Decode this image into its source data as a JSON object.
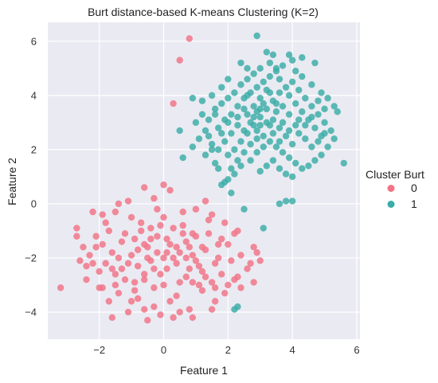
{
  "chart_data": {
    "type": "scatter",
    "title": "Burt distance-based K-means Clustering (K=2)",
    "xlabel": "Feature 1",
    "ylabel": "Feature 2",
    "xlim": [
      -3.6,
      6.1
    ],
    "ylim": [
      -5.0,
      6.7
    ],
    "xticks": [
      -2,
      0,
      2,
      4,
      6
    ],
    "yticks": [
      -4,
      -2,
      0,
      2,
      4,
      6
    ],
    "grid": true,
    "legend": {
      "title": "Cluster Burt",
      "placement": "right",
      "entries": [
        "0",
        "1"
      ]
    },
    "colors": {
      "0": "#f27385",
      "1": "#3aada6",
      "background": "#eaeaf2",
      "grid": "#ffffff"
    },
    "series": [
      {
        "name": "0",
        "points": [
          [
            0.8,
            6.1
          ],
          [
            0.5,
            5.3
          ],
          [
            0.3,
            3.7
          ],
          [
            -3.2,
            -3.1
          ],
          [
            -2.7,
            -0.9
          ],
          [
            -2.7,
            -1.2
          ],
          [
            -2.6,
            -2.1
          ],
          [
            -2.4,
            -2.8
          ],
          [
            -2.1,
            -1.6
          ],
          [
            -2.0,
            -2.5
          ],
          [
            -1.9,
            -0.4
          ],
          [
            -1.9,
            -3.1
          ],
          [
            -1.7,
            -3.6
          ],
          [
            -1.6,
            -4.2
          ],
          [
            -1.5,
            -0.3
          ],
          [
            -1.4,
            -3.3
          ],
          [
            -1.3,
            -2.4
          ],
          [
            -1.2,
            -1.1
          ],
          [
            -1.1,
            -4.0
          ],
          [
            -1.0,
            -0.5
          ],
          [
            -0.9,
            -2.9
          ],
          [
            -0.8,
            -3.5
          ],
          [
            -0.7,
            -0.7
          ],
          [
            -0.6,
            -1.5
          ],
          [
            -0.5,
            -4.3
          ],
          [
            -0.4,
            -2.1
          ],
          [
            -0.3,
            -3.8
          ],
          [
            -0.2,
            -0.2
          ],
          [
            -0.1,
            -2.6
          ],
          [
            0.0,
            -3.0
          ],
          [
            0.1,
            -1.3
          ],
          [
            0.2,
            0.5
          ],
          [
            0.3,
            -2.0
          ],
          [
            0.4,
            -3.4
          ],
          [
            0.5,
            -4.0
          ],
          [
            0.6,
            -0.8
          ],
          [
            0.7,
            -2.7
          ],
          [
            0.8,
            -3.9
          ],
          [
            0.9,
            -1.1
          ],
          [
            1.0,
            -0.2
          ],
          [
            1.1,
            -2.3
          ],
          [
            1.2,
            -3.2
          ],
          [
            1.3,
            -1.7
          ],
          [
            1.4,
            -0.6
          ],
          [
            1.5,
            -2.9
          ],
          [
            1.6,
            -3.6
          ],
          [
            1.7,
            -1.5
          ],
          [
            1.8,
            -2.6
          ],
          [
            1.9,
            -0.7
          ],
          [
            2.0,
            -3.0
          ],
          [
            2.1,
            -2.1
          ],
          [
            2.2,
            -1.1
          ],
          [
            2.3,
            -2.7
          ],
          [
            2.4,
            -1.9
          ],
          [
            2.6,
            -2.4
          ],
          [
            2.8,
            -1.6
          ],
          [
            2.9,
            -1.8
          ],
          [
            3.0,
            -2.1
          ],
          [
            2.2,
            -2.8
          ],
          [
            2.3,
            -1.0
          ],
          [
            1.3,
            0.1
          ],
          [
            1.5,
            -0.4
          ],
          [
            -0.3,
            0.2
          ],
          [
            -0.6,
            0.6
          ],
          [
            0.0,
            0.7
          ],
          [
            -1.1,
            0.1
          ],
          [
            -1.4,
            0.0
          ],
          [
            -2.2,
            -0.3
          ],
          [
            -2.3,
            -1.9
          ],
          [
            -1.8,
            -2.2
          ],
          [
            -2.1,
            -1.2
          ],
          [
            -1.6,
            -1.8
          ],
          [
            -1.3,
            -1.4
          ],
          [
            -1.0,
            -1.9
          ],
          [
            -0.8,
            -2.3
          ],
          [
            -0.5,
            -1.6
          ],
          [
            -0.2,
            -1.2
          ],
          [
            0.1,
            -1.8
          ],
          [
            0.4,
            -2.2
          ],
          [
            0.7,
            -1.4
          ],
          [
            0.9,
            -1.9
          ],
          [
            1.2,
            -2.5
          ],
          [
            1.4,
            -1.1
          ],
          [
            1.6,
            -2.2
          ],
          [
            1.8,
            -1.3
          ],
          [
            -1.2,
            -2.8
          ],
          [
            -0.9,
            -3.2
          ],
          [
            -0.6,
            -2.6
          ],
          [
            -0.3,
            -3.1
          ],
          [
            0.2,
            -3.6
          ],
          [
            0.5,
            -2.9
          ],
          [
            0.8,
            -2.4
          ],
          [
            1.1,
            -3.0
          ],
          [
            1.3,
            -2.7
          ],
          [
            1.6,
            -3.1
          ],
          [
            -1.5,
            -2.6
          ],
          [
            -0.7,
            -1.0
          ],
          [
            -0.4,
            -0.9
          ],
          [
            0.0,
            -0.5
          ],
          [
            0.3,
            -0.9
          ],
          [
            0.6,
            -0.3
          ],
          [
            1.0,
            -1.2
          ],
          [
            -1.9,
            -1.5
          ],
          [
            -1.7,
            -1.0
          ],
          [
            -0.1,
            -4.1
          ],
          [
            0.3,
            -4.2
          ],
          [
            0.9,
            -4.2
          ],
          [
            -0.6,
            -3.9
          ],
          [
            -1.0,
            -3.6
          ],
          [
            1.5,
            -3.9
          ],
          [
            1.9,
            -3.3
          ],
          [
            2.4,
            -3.1
          ],
          [
            2.7,
            -2.2
          ],
          [
            2.8,
            -2.9
          ],
          [
            -2.5,
            -1.6
          ],
          [
            -2.4,
            -2.3
          ],
          [
            -2.0,
            -3.1
          ],
          [
            -1.5,
            -3.0
          ],
          [
            0.6,
            -1.1
          ],
          [
            -0.5,
            -2.0
          ],
          [
            0.1,
            -2.4
          ],
          [
            0.4,
            -1.6
          ],
          [
            -0.2,
            -1.8
          ],
          [
            -0.9,
            -1.3
          ],
          [
            1.2,
            -1.6
          ],
          [
            0.7,
            -2.0
          ],
          [
            -1.1,
            -2.2
          ],
          [
            -0.3,
            -2.4
          ],
          [
            0.9,
            -2.9
          ],
          [
            1.7,
            -2.0
          ],
          [
            2.0,
            -1.5
          ],
          [
            -1.4,
            -2.0
          ],
          [
            -0.8,
            -1.7
          ],
          [
            0.2,
            -1.5
          ],
          [
            0.5,
            -1.8
          ],
          [
            -0.6,
            -2.8
          ],
          [
            0.0,
            -2.0
          ],
          [
            -0.4,
            -1.3
          ],
          [
            0.8,
            -1.6
          ],
          [
            1.0,
            -2.1
          ],
          [
            -1.6,
            -2.4
          ],
          [
            -2.2,
            -2.2
          ],
          [
            -1.8,
            -0.7
          ],
          [
            -0.1,
            -0.8
          ]
        ]
      },
      {
        "name": "1",
        "points": [
          [
            2.9,
            6.2
          ],
          [
            5.6,
            1.5
          ],
          [
            3.6,
            0.0
          ],
          [
            3.8,
            0.1
          ],
          [
            4.0,
            0.1
          ],
          [
            3.1,
            -0.9
          ],
          [
            2.5,
            -0.2
          ],
          [
            2.1,
            0.4
          ],
          [
            2.2,
            -3.9
          ],
          [
            2.3,
            -3.8
          ],
          [
            1.8,
            0.7
          ],
          [
            1.9,
            0.8
          ],
          [
            2.0,
            0.9
          ],
          [
            1.7,
            1.3
          ],
          [
            1.6,
            1.5
          ],
          [
            1.3,
            1.8
          ],
          [
            1.5,
            2.0
          ],
          [
            1.4,
            2.5
          ],
          [
            1.7,
            2.8
          ],
          [
            1.9,
            3.1
          ],
          [
            2.1,
            3.3
          ],
          [
            2.3,
            3.6
          ],
          [
            2.5,
            3.9
          ],
          [
            2.7,
            4.1
          ],
          [
            2.9,
            4.3
          ],
          [
            3.1,
            4.5
          ],
          [
            3.3,
            4.7
          ],
          [
            3.5,
            4.9
          ],
          [
            3.7,
            5.1
          ],
          [
            4.0,
            5.3
          ],
          [
            4.3,
            5.4
          ],
          [
            4.7,
            5.2
          ],
          [
            3.2,
            5.6
          ],
          [
            3.4,
            5.5
          ],
          [
            2.4,
            5.2
          ],
          [
            2.6,
            5.0
          ],
          [
            2.0,
            4.6
          ],
          [
            1.8,
            4.3
          ],
          [
            1.5,
            4.0
          ],
          [
            1.2,
            3.8
          ],
          [
            0.9,
            3.9
          ],
          [
            0.5,
            2.7
          ],
          [
            0.6,
            1.7
          ],
          [
            0.9,
            2.1
          ],
          [
            1.1,
            2.4
          ],
          [
            1.0,
            3.0
          ],
          [
            1.2,
            3.3
          ],
          [
            1.6,
            3.5
          ],
          [
            2.2,
            2.0
          ],
          [
            2.4,
            2.3
          ],
          [
            2.6,
            2.6
          ],
          [
            2.8,
            2.9
          ],
          [
            3.0,
            3.2
          ],
          [
            3.2,
            3.5
          ],
          [
            3.4,
            3.8
          ],
          [
            3.6,
            4.1
          ],
          [
            3.8,
            4.3
          ],
          [
            4.0,
            4.5
          ],
          [
            4.2,
            4.2
          ],
          [
            4.4,
            3.9
          ],
          [
            4.6,
            3.6
          ],
          [
            4.8,
            3.3
          ],
          [
            5.0,
            3.0
          ],
          [
            5.2,
            2.7
          ],
          [
            5.3,
            2.4
          ],
          [
            5.1,
            2.1
          ],
          [
            4.9,
            1.8
          ],
          [
            4.7,
            1.6
          ],
          [
            4.5,
            1.4
          ],
          [
            4.3,
            1.3
          ],
          [
            4.1,
            1.5
          ],
          [
            3.9,
            1.7
          ],
          [
            3.7,
            1.9
          ],
          [
            3.5,
            2.1
          ],
          [
            3.3,
            2.3
          ],
          [
            3.1,
            2.5
          ],
          [
            2.9,
            2.7
          ],
          [
            2.7,
            2.2
          ],
          [
            2.5,
            1.9
          ],
          [
            2.3,
            1.6
          ],
          [
            2.1,
            1.3
          ],
          [
            2.0,
            1.8
          ],
          [
            3.0,
            1.2
          ],
          [
            3.2,
            1.4
          ],
          [
            3.4,
            1.6
          ],
          [
            3.6,
            1.3
          ],
          [
            3.8,
            1.1
          ],
          [
            4.0,
            1.0
          ],
          [
            2.6,
            3.3
          ],
          [
            2.8,
            3.6
          ],
          [
            3.0,
            3.9
          ],
          [
            3.2,
            4.2
          ],
          [
            3.4,
            3.1
          ],
          [
            3.6,
            2.8
          ],
          [
            3.8,
            2.5
          ],
          [
            4.0,
            2.2
          ],
          [
            4.2,
            2.6
          ],
          [
            4.4,
            2.9
          ],
          [
            4.6,
            3.2
          ],
          [
            4.8,
            2.3
          ],
          [
            5.0,
            2.6
          ],
          [
            5.4,
            3.4
          ],
          [
            5.3,
            3.6
          ],
          [
            5.1,
            3.9
          ],
          [
            4.9,
            4.1
          ],
          [
            4.6,
            4.4
          ],
          [
            4.3,
            4.7
          ],
          [
            4.1,
            4.9
          ],
          [
            3.9,
            5.5
          ],
          [
            3.5,
            5.0
          ],
          [
            3.3,
            4.1
          ],
          [
            3.1,
            3.7
          ],
          [
            2.9,
            3.4
          ],
          [
            2.7,
            3.0
          ],
          [
            2.5,
            2.7
          ],
          [
            2.3,
            2.9
          ],
          [
            2.1,
            2.6
          ],
          [
            1.9,
            2.3
          ],
          [
            1.7,
            2.0
          ],
          [
            1.5,
            2.2
          ],
          [
            1.3,
            2.7
          ],
          [
            1.4,
            3.1
          ],
          [
            1.6,
            3.3
          ],
          [
            1.8,
            3.7
          ],
          [
            2.0,
            3.9
          ],
          [
            2.2,
            4.1
          ],
          [
            2.4,
            4.4
          ],
          [
            2.6,
            4.6
          ],
          [
            2.8,
            4.8
          ],
          [
            3.0,
            5.0
          ],
          [
            3.3,
            5.2
          ],
          [
            3.6,
            4.6
          ],
          [
            3.9,
            4.0
          ],
          [
            4.1,
            3.7
          ],
          [
            4.3,
            3.4
          ],
          [
            4.5,
            3.1
          ],
          [
            4.7,
            2.8
          ],
          [
            4.9,
            2.5
          ],
          [
            4.1,
            2.9
          ],
          [
            3.9,
            3.3
          ],
          [
            3.7,
            3.6
          ],
          [
            3.5,
            3.4
          ],
          [
            3.3,
            2.9
          ],
          [
            3.1,
            2.1
          ],
          [
            2.9,
            1.9
          ],
          [
            2.7,
            1.6
          ],
          [
            2.4,
            1.4
          ],
          [
            2.2,
            1.1
          ],
          [
            3.5,
            3.7
          ],
          [
            3.0,
            2.9
          ],
          [
            2.8,
            3.2
          ],
          [
            3.7,
            3.0
          ],
          [
            3.9,
            2.7
          ],
          [
            4.2,
            3.1
          ],
          [
            2.5,
            3.5
          ],
          [
            2.3,
            3.2
          ],
          [
            2.0,
            3.0
          ],
          [
            1.8,
            2.6
          ],
          [
            3.4,
            2.6
          ],
          [
            3.6,
            2.3
          ],
          [
            4.4,
            2.4
          ],
          [
            4.6,
            2.1
          ],
          [
            4.8,
            3.8
          ],
          [
            5.0,
            3.5
          ],
          [
            2.6,
            4.0
          ],
          [
            3.2,
            3.0
          ],
          [
            3.0,
            3.5
          ],
          [
            2.9,
            2.4
          ]
        ]
      }
    ]
  }
}
